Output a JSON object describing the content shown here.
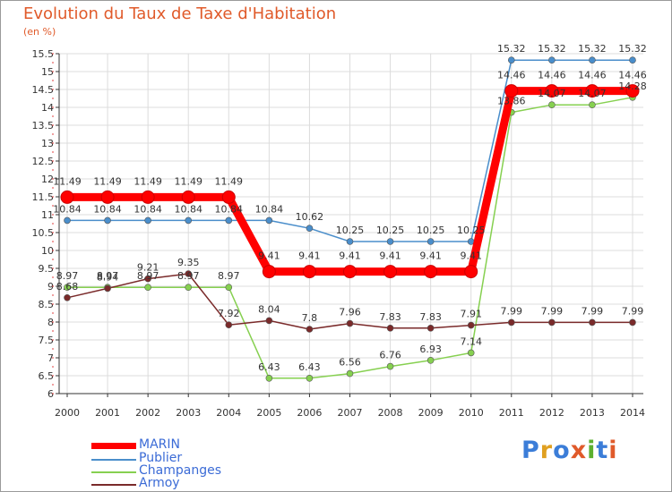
{
  "chart_data": {
    "type": "line",
    "title": "Evolution du Taux de Taxe d'Habitation",
    "subtitle": "(en %)",
    "xlabel": "",
    "ylabel": "",
    "x": [
      2000,
      2001,
      2002,
      2003,
      2004,
      2005,
      2006,
      2007,
      2008,
      2009,
      2010,
      2011,
      2012,
      2013,
      2014
    ],
    "x_tick_labels": [
      "2000",
      "2001",
      "2002",
      "2003",
      "2004",
      "2005",
      "2006",
      "2007",
      "2008",
      "2009",
      "2010",
      "2011",
      "2012",
      "2013",
      "2014"
    ],
    "ylim": [
      6,
      15.5
    ],
    "y_tick_labels": [
      "6",
      "6.5",
      "7",
      "7.5",
      "8",
      "8.5",
      "9",
      "9.5",
      "10",
      "10.5",
      "11",
      "11.5",
      "12",
      "12.5",
      "13",
      "13.5",
      "14",
      "14.5",
      "15",
      "15.5"
    ],
    "grid": true,
    "legend_position": "bottom-left",
    "series": [
      {
        "name": "MARIN",
        "color": "#ff0000",
        "values": [
          11.49,
          11.49,
          11.49,
          11.49,
          11.49,
          9.41,
          9.41,
          9.41,
          9.41,
          9.41,
          9.41,
          14.46,
          14.46,
          14.46,
          14.46
        ],
        "labels": [
          "11.49",
          "11.49",
          "11.49",
          "11.49",
          "11.49",
          "9.41",
          "9.41",
          "9.41",
          "9.41",
          "9.41",
          "9.41",
          "14.46",
          "14.46",
          "14.46",
          "14.46"
        ]
      },
      {
        "name": "Publier",
        "color": "#4a8ecb",
        "values": [
          10.84,
          10.84,
          10.84,
          10.84,
          10.84,
          10.84,
          10.62,
          10.25,
          10.25,
          10.25,
          10.25,
          15.32,
          15.32,
          15.32,
          15.32
        ],
        "labels": [
          "10.84",
          "10.84",
          "10.84",
          "10.84",
          "10.84",
          "10.84",
          "10.62",
          "10.25",
          "10.25",
          "10.25",
          "10.25",
          "15.32",
          "15.32",
          "15.32",
          "15.32"
        ]
      },
      {
        "name": "Champanges",
        "color": "#86d050",
        "values": [
          8.97,
          8.97,
          8.97,
          8.97,
          8.97,
          6.43,
          6.43,
          6.56,
          6.76,
          6.93,
          7.14,
          13.86,
          14.07,
          14.07,
          14.28
        ],
        "labels": [
          "8.97",
          "8.97",
          "8.97",
          "8.97",
          "8.97",
          "6.43",
          "6.43",
          "6.56",
          "6.76",
          "6.93",
          "7.14",
          "13.86",
          "14.07",
          "14.07",
          "14.28"
        ]
      },
      {
        "name": "Armoy",
        "color": "#7a2a2a",
        "values": [
          8.68,
          8.94,
          9.21,
          9.35,
          7.92,
          8.04,
          7.8,
          7.96,
          7.83,
          7.83,
          7.91,
          7.99,
          7.99,
          7.99,
          7.99
        ],
        "labels": [
          "8.68",
          "8.94",
          "9.21",
          "9.35",
          "7.92",
          "8.04",
          "7.8",
          "7.96",
          "7.83",
          "7.83",
          "7.91",
          "7.99",
          "7.99",
          "7.99",
          "7.99"
        ]
      }
    ]
  },
  "logo": {
    "text": "Proxiti"
  }
}
